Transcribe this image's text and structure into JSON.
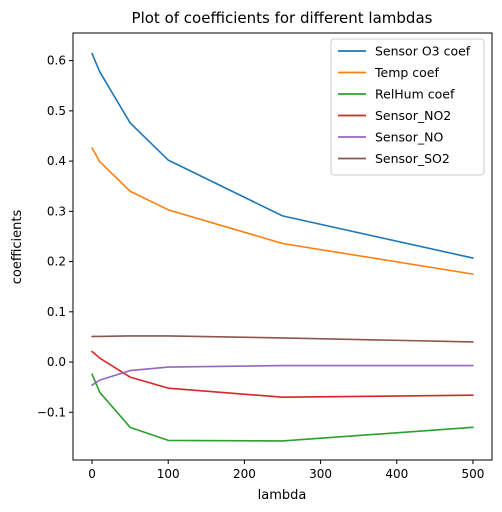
{
  "chart_data": {
    "type": "line",
    "title": "Plot of coefficients for different lambdas",
    "xlabel": "lambda",
    "ylabel": "coefficients",
    "xlim": [
      -25,
      525
    ],
    "ylim": [
      -0.195,
      0.655
    ],
    "xticks": [
      0,
      100,
      200,
      300,
      400,
      500
    ],
    "xtick_labels": [
      "0",
      "100",
      "200",
      "300",
      "400",
      "500"
    ],
    "yticks": [
      -0.1,
      0.0,
      0.1,
      0.2,
      0.3,
      0.4,
      0.5,
      0.6
    ],
    "ytick_labels": [
      "−0.1",
      "0.0",
      "0.1",
      "0.2",
      "0.3",
      "0.4",
      "0.5",
      "0.6"
    ],
    "grid": false,
    "legend_position": "top-right",
    "x": [
      0,
      10,
      50,
      100,
      250,
      500
    ],
    "series": [
      {
        "name": "Sensor O3 coef",
        "color": "#1f77b4",
        "values": [
          0.614,
          0.578,
          0.476,
          0.402,
          0.291,
          0.207
        ]
      },
      {
        "name": "Temp coef",
        "color": "#ff7f0e",
        "values": [
          0.426,
          0.399,
          0.34,
          0.303,
          0.236,
          0.175
        ]
      },
      {
        "name": "RelHum coef",
        "color": "#2ca02c",
        "values": [
          -0.024,
          -0.06,
          -0.13,
          -0.156,
          -0.157,
          -0.13
        ]
      },
      {
        "name": "Sensor_NO2",
        "color": "#d62728",
        "values": [
          0.021,
          0.008,
          -0.03,
          -0.052,
          -0.07,
          -0.066
        ]
      },
      {
        "name": "Sensor_NO",
        "color": "#9467bd",
        "values": [
          -0.046,
          -0.036,
          -0.017,
          -0.01,
          -0.007,
          -0.007
        ]
      },
      {
        "name": "Sensor_SO2",
        "color": "#8c564b",
        "values": [
          0.051,
          0.051,
          0.052,
          0.052,
          0.048,
          0.04
        ]
      }
    ]
  }
}
